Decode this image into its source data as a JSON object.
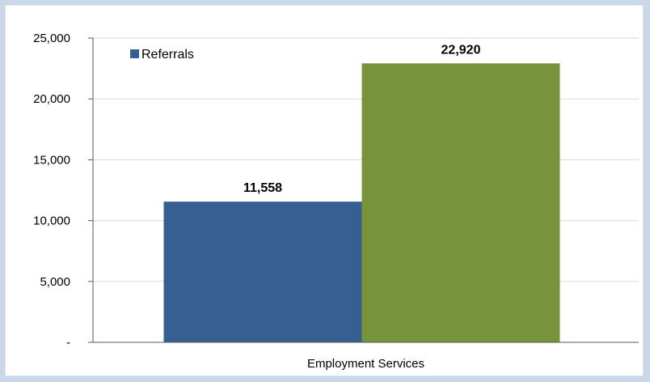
{
  "chart_data": {
    "type": "bar",
    "title": "",
    "xlabel": "",
    "ylabel": "",
    "categories": [
      "Employment Services"
    ],
    "series": [
      {
        "name": "Referrals",
        "values": [
          11558
        ],
        "label": "11,558",
        "color": "#376092"
      },
      {
        "values": [
          22920
        ],
        "label": "22,920",
        "color": "#77933c"
      }
    ],
    "ylim": [
      0,
      25000
    ],
    "yticks": [
      0,
      5000,
      10000,
      15000,
      20000,
      25000
    ],
    "ytick_labels": [
      "-",
      "5,000",
      "10,000",
      "15,000",
      "20,000",
      "25,000"
    ],
    "grid": true,
    "legend_position": "top-left"
  }
}
